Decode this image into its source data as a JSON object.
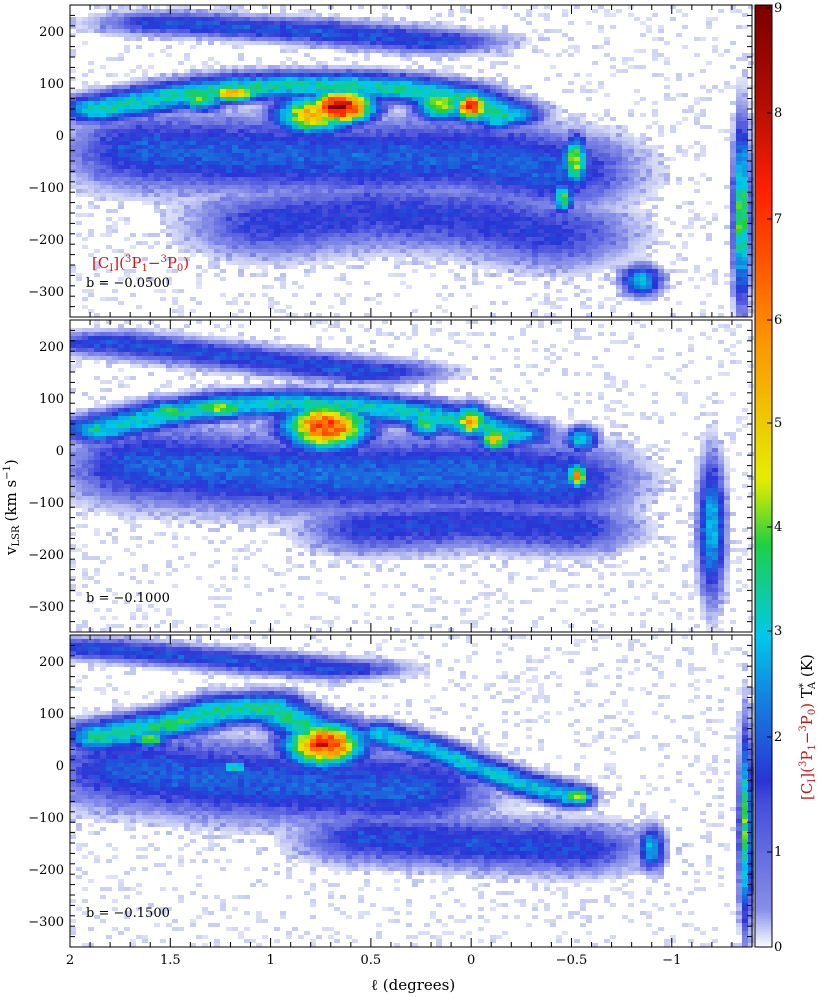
{
  "chart_data": {
    "type": "heatmap",
    "x_axis": {
      "label": "ℓ (degrees)",
      "range": [
        2.0,
        -1.4
      ],
      "major_ticks": [
        2,
        1.5,
        1,
        0.5,
        0,
        -0.5,
        -1
      ],
      "tick_labels": [
        "2",
        "1.5",
        "1",
        "0.5",
        "0",
        "−0.5",
        "−1"
      ]
    },
    "y_axis": {
      "label": "v",
      "label_subscript": "LSR",
      "label_units": "(km s",
      "label_units_sup": "−1",
      "label_units_end": ")",
      "range": [
        -350,
        250
      ],
      "major_ticks": [
        200,
        100,
        0,
        -100,
        -200,
        -300
      ],
      "tick_labels": [
        "200",
        "100",
        "0",
        "−100",
        "−200",
        "−300"
      ]
    },
    "colorbar": {
      "range": [
        0,
        9
      ],
      "scale": "nonlinear",
      "ticks": [
        0,
        1,
        2,
        3,
        4,
        5,
        6,
        7,
        8,
        9
      ],
      "tick_labels": [
        "0",
        "1",
        "2",
        "3",
        "4",
        "5",
        "6",
        "7",
        "8",
        "9"
      ],
      "title_red": "[C",
      "title_red_sub": "I",
      "title_red_mid": "](",
      "title_red_sup1": "3",
      "title_red_p1": "P",
      "title_red_sub1": "1",
      "title_red_dash": "−",
      "title_red_sup2": "3",
      "title_red_p2": "P",
      "title_red_sub2": "0",
      "title_red_end": ")",
      "title_black": " T",
      "title_black_sup": "*",
      "title_black_sub": "A",
      "title_units": " (K)",
      "colors": [
        "#ffffff",
        "#d8dcf6",
        "#8c93e8",
        "#2a34d6",
        "#00c8ea",
        "#20d040",
        "#e4ec00",
        "#ff8c00",
        "#ff1f00",
        "#7a0000"
      ]
    },
    "line_label": {
      "main": "[C",
      "sub": "I",
      "mid": "](",
      "sup1": "3",
      "p1": "P",
      "sub1": "1",
      "dash": "−",
      "sup2": "3",
      "p2": "P",
      "sub2": "0",
      "end": ")"
    },
    "panels": [
      {
        "b_label": "b = −0.0500",
        "b_value": -0.05,
        "features": [
          {
            "name": "ridge",
            "x": [
              1.85,
              1.5,
              1.2,
              0.9,
              0.6,
              0.3,
              0.05,
              -0.15
            ],
            "y": [
              50,
              75,
              90,
              95,
              95,
              88,
              72,
              40
            ],
            "peak": 3.2,
            "sx": 0.12,
            "sy": 16
          },
          {
            "name": "clump",
            "x": [
              0.65
            ],
            "y": [
              55
            ],
            "peak": 9.0,
            "sx": 0.1,
            "sy": 20
          },
          {
            "name": "clump",
            "x": [
              0.78
            ],
            "y": [
              40
            ],
            "peak": 5.5,
            "sx": 0.12,
            "sy": 24
          },
          {
            "name": "clump",
            "x": [
              1.18
            ],
            "y": [
              80
            ],
            "peak": 6.0,
            "sx": 0.08,
            "sy": 10
          },
          {
            "name": "clump",
            "x": [
              1.35
            ],
            "y": [
              70
            ],
            "peak": 4.0,
            "sx": 0.08,
            "sy": 14
          },
          {
            "name": "clump",
            "x": [
              0.0
            ],
            "y": [
              55
            ],
            "peak": 8.0,
            "sx": 0.05,
            "sy": 16
          },
          {
            "name": "clump",
            "x": [
              0.15
            ],
            "y": [
              60
            ],
            "peak": 4.5,
            "sx": 0.08,
            "sy": 20
          },
          {
            "name": "clump",
            "x": [
              -0.13
            ],
            "y": [
              30
            ],
            "peak": 3.2,
            "sx": 0.06,
            "sy": 12
          },
          {
            "name": "clump",
            "x": [
              -0.52
            ],
            "y": [
              -50
            ],
            "peak": 4.5,
            "sx": 0.04,
            "sy": 28
          },
          {
            "name": "clump",
            "x": [
              -0.46
            ],
            "y": [
              -120
            ],
            "peak": 4.0,
            "sx": 0.03,
            "sy": 18
          },
          {
            "name": "clump",
            "x": [
              -1.35
            ],
            "y": [
              -150
            ],
            "peak": 4.2,
            "sx": 0.025,
            "sy": 100
          },
          {
            "name": "clump",
            "x": [
              -0.85
            ],
            "y": [
              -280
            ],
            "peak": 2.6,
            "sx": 0.06,
            "sy": 18
          },
          {
            "name": "envelope",
            "x": [
              1.6,
              1.0,
              0.5,
              0.0,
              -0.4
            ],
            "y": [
              -30,
              -40,
              -45,
              -40,
              -70
            ],
            "peak": 1.6,
            "sx": 0.25,
            "sy": 45
          },
          {
            "name": "upper-band",
            "x": [
              1.5,
              0.8,
              0.2
            ],
            "y": [
              215,
              200,
              180
            ],
            "peak": 1.5,
            "sx": 0.22,
            "sy": 14
          },
          {
            "name": "lower-wing",
            "x": [
              1.0,
              0.5,
              0.0,
              -0.4
            ],
            "y": [
              -170,
              -150,
              -160,
              -190
            ],
            "peak": 1.2,
            "sx": 0.25,
            "sy": 40
          }
        ]
      },
      {
        "b_label": "b = −0.1000",
        "b_value": -0.1,
        "features": [
          {
            "name": "ridge",
            "x": [
              1.85,
              1.5,
              1.2,
              0.9,
              0.6,
              0.3,
              0.05,
              -0.2
            ],
            "y": [
              40,
              70,
              85,
              90,
              85,
              72,
              55,
              30
            ],
            "peak": 3.0,
            "sx": 0.12,
            "sy": 16
          },
          {
            "name": "clump",
            "x": [
              0.72
            ],
            "y": [
              45
            ],
            "peak": 7.2,
            "sx": 0.13,
            "sy": 28
          },
          {
            "name": "clump",
            "x": [
              1.25
            ],
            "y": [
              80
            ],
            "peak": 4.3,
            "sx": 0.1,
            "sy": 12
          },
          {
            "name": "clump",
            "x": [
              1.5
            ],
            "y": [
              75
            ],
            "peak": 4.2,
            "sx": 0.06,
            "sy": 10
          },
          {
            "name": "clump",
            "x": [
              0.0
            ],
            "y": [
              55
            ],
            "peak": 6.0,
            "sx": 0.05,
            "sy": 18
          },
          {
            "name": "clump",
            "x": [
              -0.12
            ],
            "y": [
              20
            ],
            "peak": 5.0,
            "sx": 0.05,
            "sy": 14
          },
          {
            "name": "clump",
            "x": [
              0.22
            ],
            "y": [
              50
            ],
            "peak": 3.8,
            "sx": 0.06,
            "sy": 16
          },
          {
            "name": "clump",
            "x": [
              -0.53
            ],
            "y": [
              -50
            ],
            "peak": 6.0,
            "sx": 0.03,
            "sy": 14
          },
          {
            "name": "clump",
            "x": [
              -0.55
            ],
            "y": [
              20
            ],
            "peak": 3.2,
            "sx": 0.05,
            "sy": 14
          },
          {
            "name": "envelope",
            "x": [
              1.6,
              1.0,
              0.5,
              0.0,
              -0.4
            ],
            "y": [
              -30,
              -45,
              -50,
              -45,
              -60
            ],
            "peak": 1.7,
            "sx": 0.25,
            "sy": 45
          },
          {
            "name": "upper-band",
            "x": [
              1.8,
              1.2,
              0.5
            ],
            "y": [
              205,
              180,
              150
            ],
            "peak": 1.5,
            "sx": 0.22,
            "sy": 14
          },
          {
            "name": "lower-wing",
            "x": [
              0.5,
              0.0,
              -0.5
            ],
            "y": [
              -150,
              -140,
              -150
            ],
            "peak": 1.3,
            "sx": 0.2,
            "sy": 30
          },
          {
            "name": "clump",
            "x": [
              -1.2
            ],
            "y": [
              -150
            ],
            "peak": 2.6,
            "sx": 0.04,
            "sy": 80
          }
        ]
      },
      {
        "b_label": "b = −0.1500",
        "b_value": -0.15,
        "features": [
          {
            "name": "ridge",
            "x": [
              1.85,
              1.5,
              1.25,
              1.0,
              0.8
            ],
            "y": [
              55,
              80,
              105,
              110,
              70
            ],
            "peak": 3.3,
            "sx": 0.1,
            "sy": 18
          },
          {
            "name": "clump",
            "x": [
              0.73
            ],
            "y": [
              40
            ],
            "peak": 7.5,
            "sx": 0.12,
            "sy": 26
          },
          {
            "name": "clump",
            "x": [
              1.5
            ],
            "y": [
              75
            ],
            "peak": 4.0,
            "sx": 0.06,
            "sy": 10
          },
          {
            "name": "clump",
            "x": [
              1.6
            ],
            "y": [
              50
            ],
            "peak": 4.2,
            "sx": 0.05,
            "sy": 10
          },
          {
            "name": "clump",
            "x": [
              1.18
            ],
            "y": [
              -5
            ],
            "peak": 3.8,
            "sx": 0.04,
            "sy": 8
          },
          {
            "name": "diagonal",
            "x": [
              0.45,
              0.2,
              0.0,
              -0.25,
              -0.5
            ],
            "y": [
              60,
              30,
              0,
              -35,
              -60
            ],
            "peak": 2.8,
            "sx": 0.07,
            "sy": 14
          },
          {
            "name": "clump",
            "x": [
              -0.53
            ],
            "y": [
              -60
            ],
            "peak": 4.3,
            "sx": 0.05,
            "sy": 12
          },
          {
            "name": "envelope",
            "x": [
              1.7,
              1.2,
              0.7,
              0.3
            ],
            "y": [
              -10,
              -30,
              -40,
              -45
            ],
            "peak": 1.6,
            "sx": 0.25,
            "sy": 45
          },
          {
            "name": "upper-band",
            "x": [
              1.9,
              1.3,
              0.7
            ],
            "y": [
              225,
              205,
              185
            ],
            "peak": 1.5,
            "sx": 0.22,
            "sy": 12
          },
          {
            "name": "lower-wing",
            "x": [
              0.5,
              0.0,
              -0.5
            ],
            "y": [
              -140,
              -150,
              -160
            ],
            "peak": 1.4,
            "sx": 0.22,
            "sy": 30
          },
          {
            "name": "clump",
            "x": [
              -1.37
            ],
            "y": [
              -120
            ],
            "peak": 3.8,
            "sx": 0.02,
            "sy": 110
          },
          {
            "name": "clump",
            "x": [
              -0.9
            ],
            "y": [
              -160
            ],
            "peak": 2.6,
            "sx": 0.04,
            "sy": 25
          }
        ]
      }
    ]
  }
}
